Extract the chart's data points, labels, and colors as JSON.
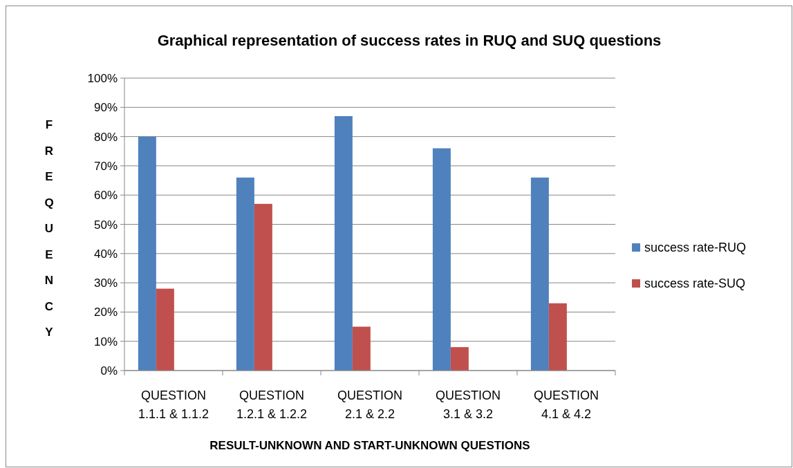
{
  "chart_data": {
    "type": "bar",
    "title": "Graphical representation of success rates in RUQ and SUQ questions",
    "xlabel": "RESULT-UNKNOWN AND START-UNKNOWN QUESTIONS",
    "ylabel": "FREQUENCY",
    "categories": [
      "QUESTION 1.1.1 & 1.1.2",
      "QUESTION 1.2.1 & 1.2.2",
      "QUESTION 2.1 & 2.2",
      "QUESTION 3.1 & 3.2",
      "QUESTION 4.1 & 4.2"
    ],
    "series": [
      {
        "name": "success rate-RUQ",
        "color": "#4f81bd",
        "values": [
          80,
          66,
          87,
          76,
          66
        ]
      },
      {
        "name": "success rate-SUQ",
        "color": "#c0504d",
        "values": [
          28,
          57,
          15,
          8,
          23
        ]
      }
    ],
    "ylim": [
      0,
      100
    ],
    "yticks": [
      {
        "value": 0,
        "label": "0%"
      },
      {
        "value": 10,
        "label": "10%"
      },
      {
        "value": 20,
        "label": "20%"
      },
      {
        "value": 30,
        "label": "30%"
      },
      {
        "value": 40,
        "label": "40%"
      },
      {
        "value": 50,
        "label": "50%"
      },
      {
        "value": 60,
        "label": "60%"
      },
      {
        "value": 70,
        "label": "70%"
      },
      {
        "value": 80,
        "label": "80%"
      },
      {
        "value": 90,
        "label": "90%"
      },
      {
        "value": 100,
        "label": "100%"
      }
    ],
    "grid": "y",
    "legend": "right"
  }
}
